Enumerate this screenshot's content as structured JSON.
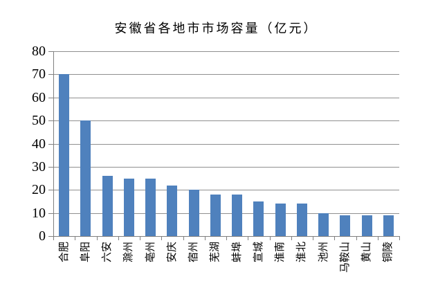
{
  "chart_data": {
    "type": "bar",
    "title": "安徽省各地市市场容量（亿元）",
    "categories": [
      "合肥",
      "阜阳",
      "六安",
      "滁州",
      "亳州",
      "安庆",
      "宿州",
      "芜湖",
      "蚌埠",
      "宣城",
      "淮南",
      "淮北",
      "池州",
      "马鞍山",
      "黄山",
      "铜陵"
    ],
    "values": [
      70,
      50,
      26,
      25,
      25,
      22,
      20,
      18,
      18,
      15,
      14,
      14,
      10,
      9,
      9,
      9
    ],
    "xlabel": "",
    "ylabel": "",
    "ylim": [
      0,
      80
    ],
    "yticks": [
      0,
      10,
      20,
      30,
      40,
      50,
      60,
      70,
      80
    ],
    "grid": true,
    "legend": false,
    "x_labels_rotated_degrees": 90,
    "bar_color": "#4F81BD",
    "gridline_color": "#8F8F8F",
    "axis_color": "#7F7F7F",
    "text_color": "#000000",
    "background_color": "#FFFFFF"
  }
}
